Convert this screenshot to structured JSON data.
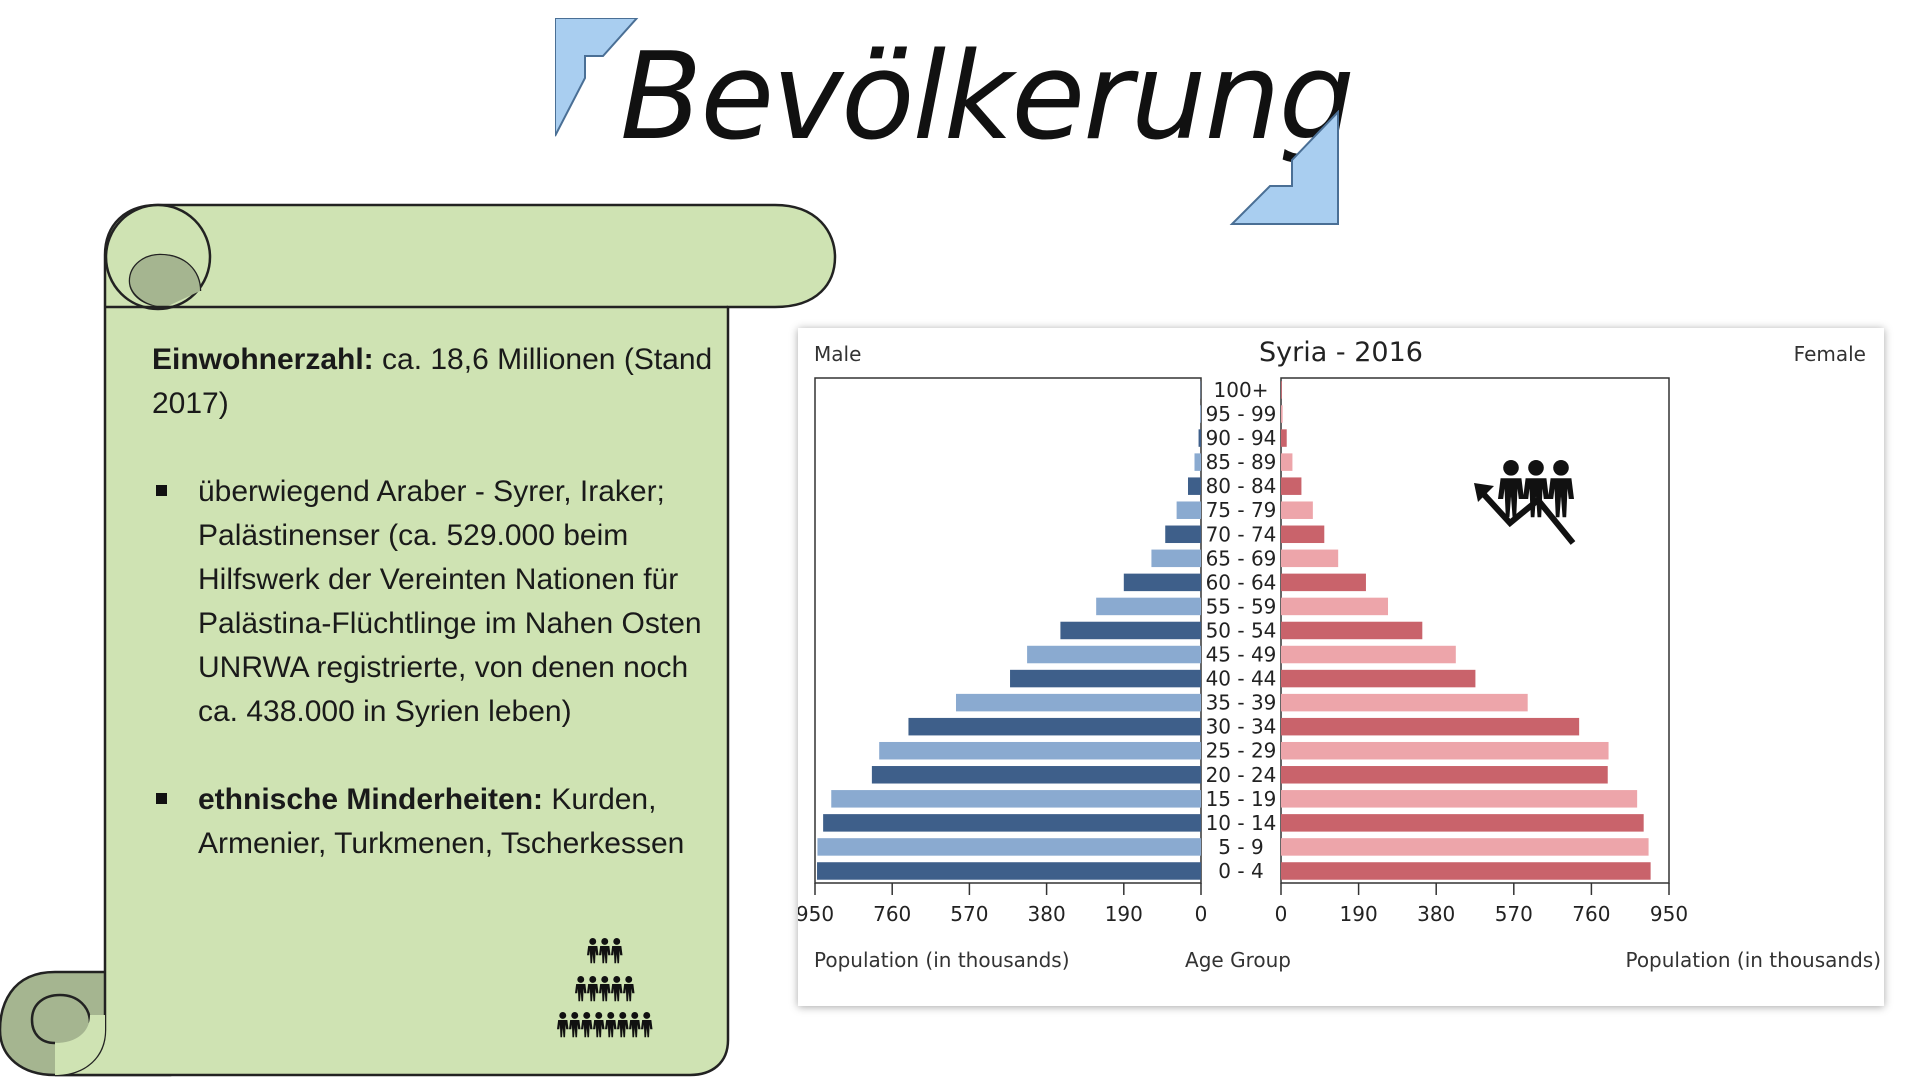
{
  "page": {
    "title": "Bevölkerung"
  },
  "info": {
    "population_label": "Einwohnerzahl:",
    "population_value": " ca. 18,6 Millionen (Stand 2017)",
    "bullets": [
      {
        "bold": "",
        "text": "überwiegend Araber - Syrer, Iraker; Palästinenser (ca. 529.000 beim Hilfswerk der Vereinten Nationen für Palästina-Flüchtlinge im Nahen Osten UNRWA registrierte, von denen noch ca. 438.000 in Syrien leben)"
      },
      {
        "bold": "ethnische Minderheiten:",
        "text": " Kurden, Armenier, Turkmenen, Tscherkessen"
      }
    ]
  },
  "icons": {
    "scroll": "scroll-banner",
    "people_pyramid": "people-pyramid-icon",
    "population_growth": "population-growth-icon",
    "title_corners": "corner-bracket-icon"
  },
  "chart_data": {
    "type": "bar",
    "subtype": "population-pyramid",
    "title": "Syria - 2016",
    "left_label": "Male",
    "right_label": "Female",
    "xlabel_left": "Population (in thousands)",
    "xlabel_center": "Age Group",
    "xlabel_right": "Population (in thousands)",
    "categories": [
      "0 - 4",
      "5 - 9",
      "10 - 14",
      "15 - 19",
      "20 - 24",
      "25 - 29",
      "30 - 34",
      "35 - 39",
      "40 - 44",
      "45 - 49",
      "50 - 54",
      "55 - 59",
      "60 - 64",
      "65 - 69",
      "70 - 74",
      "75 - 79",
      "80 - 84",
      "85 - 89",
      "90 - 94",
      "95 - 99",
      "100+"
    ],
    "series": [
      {
        "name": "Male",
        "values": [
          945,
          944,
          930,
          910,
          810,
          792,
          720,
          603,
          470,
          428,
          346,
          258,
          190,
          122,
          88,
          60,
          32,
          16,
          6,
          2,
          1
        ]
      },
      {
        "name": "Female",
        "values": [
          905,
          900,
          888,
          872,
          800,
          802,
          730,
          604,
          476,
          428,
          346,
          262,
          208,
          140,
          106,
          78,
          50,
          28,
          14,
          4,
          2
        ]
      }
    ],
    "xlim": [
      0,
      950
    ],
    "xticks_left": [
      "950",
      "760",
      "570",
      "380",
      "190",
      "0"
    ],
    "xticks_right": [
      "0",
      "190",
      "380",
      "570",
      "760",
      "950"
    ],
    "colors": {
      "male_dark": "#3e5f8a",
      "male_light": "#8aaad0",
      "female_dark": "#c9636b",
      "female_light": "#eda5aa"
    },
    "grid": false
  }
}
